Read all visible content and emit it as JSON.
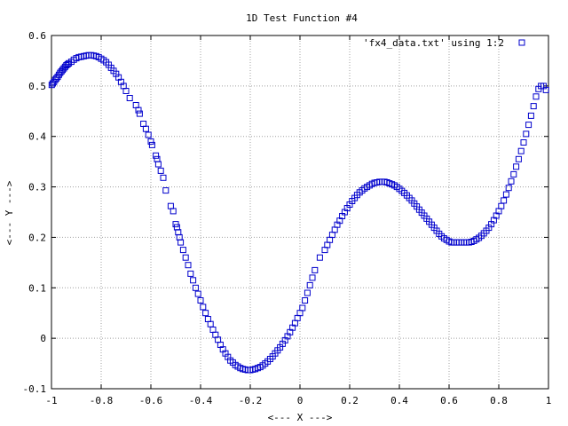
{
  "chart_data": {
    "type": "scatter",
    "title": "1D Test Function #4",
    "xlabel": "<--- X --->",
    "ylabel": "<--- Y --->",
    "xlim": [
      -1,
      1
    ],
    "ylim": [
      -0.1,
      0.6
    ],
    "x_ticks": [
      "-1",
      "-0.8",
      "-0.6",
      "-0.4",
      "-0.2",
      "0",
      "0.2",
      "0.4",
      "0.6",
      "0.8",
      "1"
    ],
    "y_ticks": [
      "-0.1",
      "0",
      "0.1",
      "0.2",
      "0.3",
      "0.4",
      "0.5",
      "0.6"
    ],
    "grid": true,
    "legend_position": "top-right",
    "series": [
      {
        "name": "'fx4_data.txt' using 1:2",
        "color": "#0000cc",
        "marker": "open-square",
        "points": [
          [
            -0.999,
            0.502
          ],
          [
            -0.995,
            0.505
          ],
          [
            -0.99,
            0.508
          ],
          [
            -0.985,
            0.512
          ],
          [
            -0.98,
            0.515
          ],
          [
            -0.975,
            0.518
          ],
          [
            -0.97,
            0.522
          ],
          [
            -0.965,
            0.526
          ],
          [
            -0.96,
            0.529
          ],
          [
            -0.955,
            0.532
          ],
          [
            -0.95,
            0.535
          ],
          [
            -0.945,
            0.538
          ],
          [
            -0.94,
            0.541
          ],
          [
            -0.935,
            0.543
          ],
          [
            -0.93,
            0.545
          ],
          [
            -0.92,
            0.548
          ],
          [
            -0.91,
            0.552
          ],
          [
            -0.9,
            0.555
          ],
          [
            -0.89,
            0.557
          ],
          [
            -0.88,
            0.558
          ],
          [
            -0.87,
            0.559
          ],
          [
            -0.86,
            0.56
          ],
          [
            -0.85,
            0.561
          ],
          [
            -0.84,
            0.561
          ],
          [
            -0.83,
            0.56
          ],
          [
            -0.82,
            0.559
          ],
          [
            -0.81,
            0.557
          ],
          [
            -0.8,
            0.554
          ],
          [
            -0.79,
            0.551
          ],
          [
            -0.78,
            0.547
          ],
          [
            -0.77,
            0.542
          ],
          [
            -0.76,
            0.536
          ],
          [
            -0.75,
            0.53
          ],
          [
            -0.74,
            0.524
          ],
          [
            -0.73,
            0.517
          ],
          [
            -0.72,
            0.508
          ],
          [
            -0.71,
            0.5
          ],
          [
            -0.7,
            0.49
          ],
          [
            -0.685,
            0.476
          ],
          [
            -0.66,
            0.462
          ],
          [
            -0.65,
            0.452
          ],
          [
            -0.645,
            0.445
          ],
          [
            -0.63,
            0.425
          ],
          [
            -0.62,
            0.415
          ],
          [
            -0.61,
            0.403
          ],
          [
            -0.6,
            0.39
          ],
          [
            -0.595,
            0.383
          ],
          [
            -0.58,
            0.362
          ],
          [
            -0.575,
            0.355
          ],
          [
            -0.57,
            0.345
          ],
          [
            -0.56,
            0.332
          ],
          [
            -0.55,
            0.318
          ],
          [
            -0.54,
            0.293
          ],
          [
            -0.52,
            0.262
          ],
          [
            -0.51,
            0.252
          ],
          [
            -0.5,
            0.226
          ],
          [
            -0.495,
            0.22
          ],
          [
            -0.49,
            0.21
          ],
          [
            -0.485,
            0.2
          ],
          [
            -0.48,
            0.19
          ],
          [
            -0.47,
            0.175
          ],
          [
            -0.46,
            0.16
          ],
          [
            -0.45,
            0.145
          ],
          [
            -0.44,
            0.128
          ],
          [
            -0.43,
            0.115
          ],
          [
            -0.42,
            0.1
          ],
          [
            -0.41,
            0.088
          ],
          [
            -0.4,
            0.075
          ],
          [
            -0.39,
            0.062
          ],
          [
            -0.38,
            0.05
          ],
          [
            -0.37,
            0.038
          ],
          [
            -0.36,
            0.028
          ],
          [
            -0.35,
            0.017
          ],
          [
            -0.34,
            0.007
          ],
          [
            -0.33,
            -0.003
          ],
          [
            -0.32,
            -0.013
          ],
          [
            -0.31,
            -0.022
          ],
          [
            -0.3,
            -0.03
          ],
          [
            -0.29,
            -0.037
          ],
          [
            -0.28,
            -0.044
          ],
          [
            -0.27,
            -0.048
          ],
          [
            -0.26,
            -0.053
          ],
          [
            -0.25,
            -0.056
          ],
          [
            -0.24,
            -0.059
          ],
          [
            -0.23,
            -0.061
          ],
          [
            -0.22,
            -0.062
          ],
          [
            -0.21,
            -0.063
          ],
          [
            -0.2,
            -0.063
          ],
          [
            -0.19,
            -0.062
          ],
          [
            -0.18,
            -0.061
          ],
          [
            -0.17,
            -0.059
          ],
          [
            -0.16,
            -0.057
          ],
          [
            -0.15,
            -0.054
          ],
          [
            -0.14,
            -0.05
          ],
          [
            -0.13,
            -0.046
          ],
          [
            -0.12,
            -0.041
          ],
          [
            -0.11,
            -0.036
          ],
          [
            -0.1,
            -0.03
          ],
          [
            -0.09,
            -0.024
          ],
          [
            -0.08,
            -0.018
          ],
          [
            -0.07,
            -0.011
          ],
          [
            -0.06,
            -0.004
          ],
          [
            -0.05,
            0.004
          ],
          [
            -0.04,
            0.012
          ],
          [
            -0.03,
            0.021
          ],
          [
            -0.02,
            0.03
          ],
          [
            -0.01,
            0.04
          ],
          [
            0.0,
            0.05
          ],
          [
            0.01,
            0.06
          ],
          [
            0.02,
            0.075
          ],
          [
            0.03,
            0.09
          ],
          [
            0.04,
            0.105
          ],
          [
            0.05,
            0.12
          ],
          [
            0.06,
            0.135
          ],
          [
            0.08,
            0.16
          ],
          [
            0.1,
            0.175
          ],
          [
            0.11,
            0.185
          ],
          [
            0.12,
            0.195
          ],
          [
            0.13,
            0.205
          ],
          [
            0.14,
            0.215
          ],
          [
            0.15,
            0.225
          ],
          [
            0.16,
            0.233
          ],
          [
            0.17,
            0.242
          ],
          [
            0.18,
            0.25
          ],
          [
            0.19,
            0.258
          ],
          [
            0.2,
            0.265
          ],
          [
            0.21,
            0.272
          ],
          [
            0.22,
            0.278
          ],
          [
            0.23,
            0.284
          ],
          [
            0.24,
            0.289
          ],
          [
            0.25,
            0.293
          ],
          [
            0.26,
            0.297
          ],
          [
            0.27,
            0.3
          ],
          [
            0.28,
            0.303
          ],
          [
            0.29,
            0.306
          ],
          [
            0.3,
            0.308
          ],
          [
            0.31,
            0.309
          ],
          [
            0.32,
            0.31
          ],
          [
            0.33,
            0.31
          ],
          [
            0.34,
            0.31
          ],
          [
            0.35,
            0.309
          ],
          [
            0.36,
            0.307
          ],
          [
            0.37,
            0.305
          ],
          [
            0.38,
            0.303
          ],
          [
            0.39,
            0.3
          ],
          [
            0.4,
            0.296
          ],
          [
            0.41,
            0.292
          ],
          [
            0.42,
            0.288
          ],
          [
            0.43,
            0.283
          ],
          [
            0.44,
            0.278
          ],
          [
            0.45,
            0.273
          ],
          [
            0.46,
            0.267
          ],
          [
            0.47,
            0.261
          ],
          [
            0.48,
            0.255
          ],
          [
            0.49,
            0.249
          ],
          [
            0.5,
            0.243
          ],
          [
            0.51,
            0.237
          ],
          [
            0.52,
            0.231
          ],
          [
            0.53,
            0.225
          ],
          [
            0.54,
            0.219
          ],
          [
            0.55,
            0.213
          ],
          [
            0.56,
            0.207
          ],
          [
            0.57,
            0.202
          ],
          [
            0.58,
            0.198
          ],
          [
            0.59,
            0.195
          ],
          [
            0.6,
            0.192
          ],
          [
            0.61,
            0.19
          ],
          [
            0.62,
            0.19
          ],
          [
            0.63,
            0.19
          ],
          [
            0.64,
            0.19
          ],
          [
            0.65,
            0.19
          ],
          [
            0.66,
            0.19
          ],
          [
            0.67,
            0.19
          ],
          [
            0.68,
            0.19
          ],
          [
            0.69,
            0.191
          ],
          [
            0.7,
            0.193
          ],
          [
            0.71,
            0.196
          ],
          [
            0.72,
            0.199
          ],
          [
            0.73,
            0.203
          ],
          [
            0.74,
            0.208
          ],
          [
            0.75,
            0.213
          ],
          [
            0.76,
            0.219
          ],
          [
            0.77,
            0.226
          ],
          [
            0.78,
            0.234
          ],
          [
            0.79,
            0.243
          ],
          [
            0.8,
            0.252
          ],
          [
            0.81,
            0.262
          ],
          [
            0.82,
            0.273
          ],
          [
            0.83,
            0.285
          ],
          [
            0.84,
            0.298
          ],
          [
            0.85,
            0.311
          ],
          [
            0.86,
            0.325
          ],
          [
            0.87,
            0.34
          ],
          [
            0.88,
            0.355
          ],
          [
            0.89,
            0.371
          ],
          [
            0.9,
            0.388
          ],
          [
            0.91,
            0.405
          ],
          [
            0.92,
            0.423
          ],
          [
            0.93,
            0.441
          ],
          [
            0.94,
            0.46
          ],
          [
            0.95,
            0.479
          ],
          [
            0.96,
            0.494
          ],
          [
            0.97,
            0.5
          ],
          [
            0.98,
            0.5
          ],
          [
            0.99,
            0.492
          ]
        ]
      }
    ]
  }
}
